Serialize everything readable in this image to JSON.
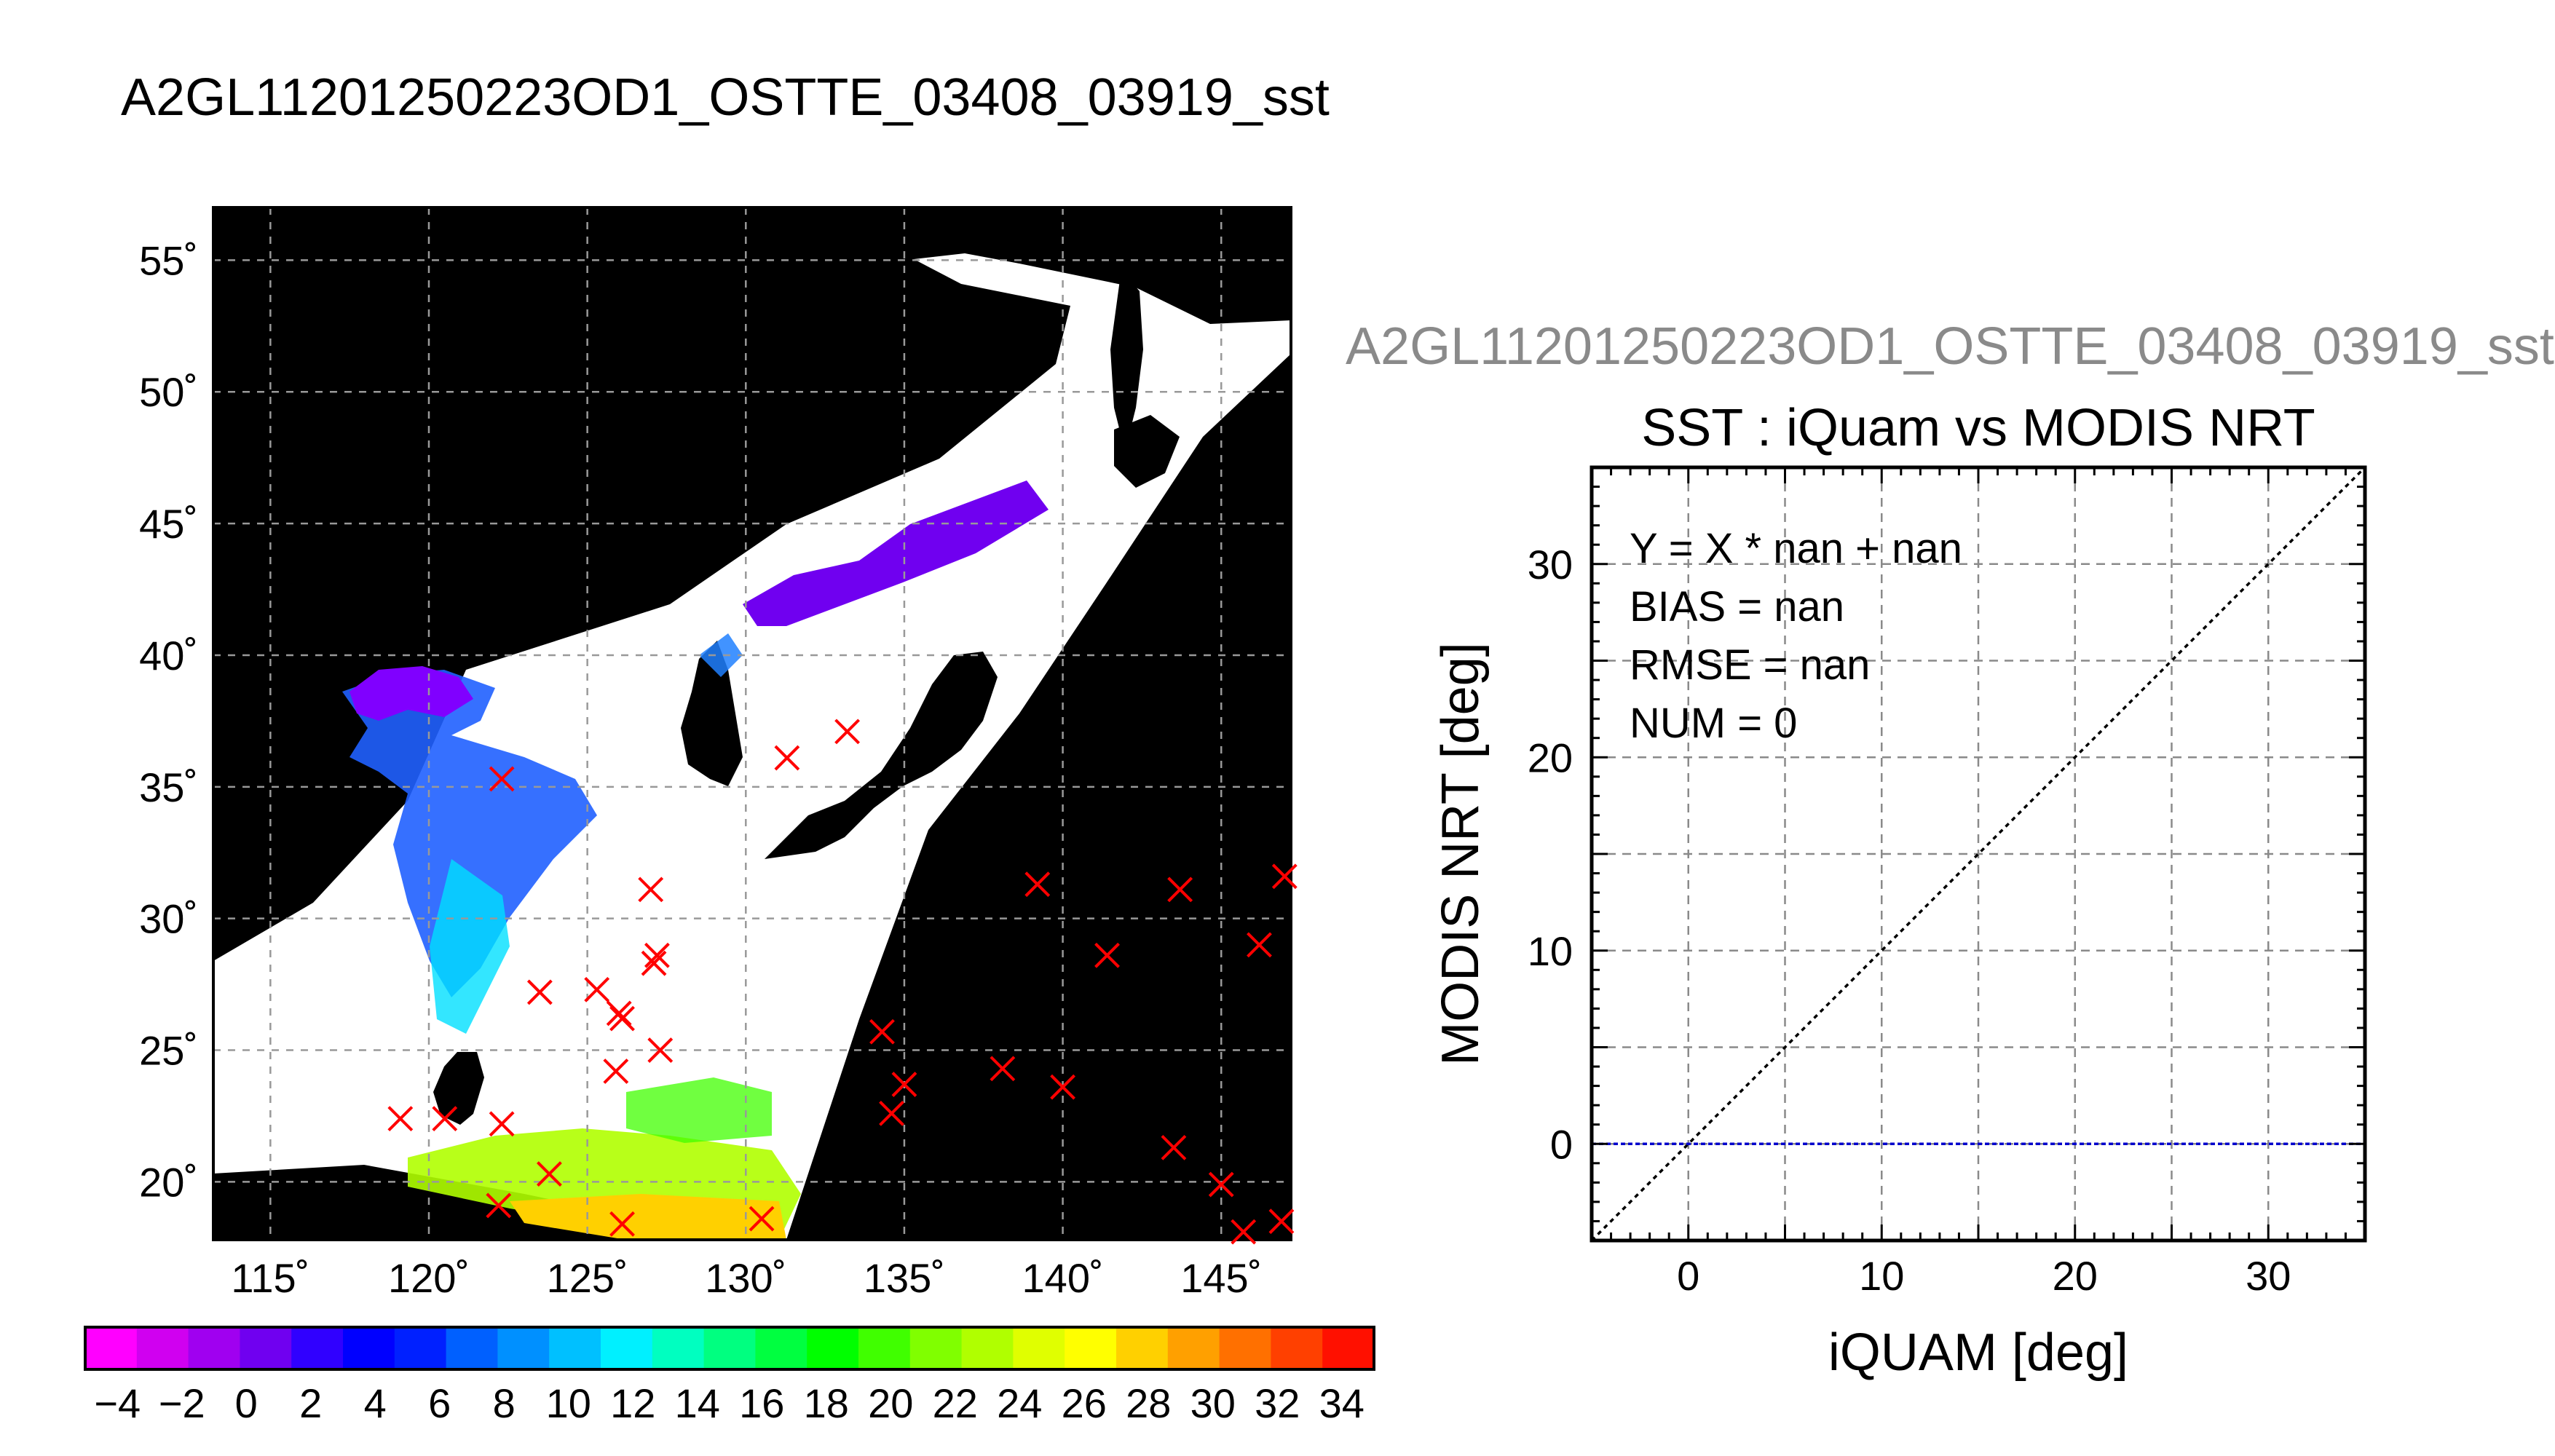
{
  "page": {
    "main_title": "A2GL11201250223OD1_OSTTE_03408_03919_sst",
    "sub_title": "A2GL11201250223OD1_OSTTE_03408_03919_sst"
  },
  "chart_data": [
    {
      "type": "map",
      "name": "sst-map",
      "xlim": [
        113.2,
        147.2
      ],
      "ylim": [
        17.8,
        57.0
      ],
      "x_ticks": [
        115,
        120,
        125,
        130,
        135,
        140,
        145
      ],
      "y_ticks": [
        20,
        25,
        30,
        35,
        40,
        45,
        50,
        55
      ],
      "x_tick_labels": [
        "115˚",
        "120˚",
        "125˚",
        "130˚",
        "135˚",
        "140˚",
        "145˚"
      ],
      "y_tick_labels": [
        "20˚",
        "25˚",
        "30˚",
        "35˚",
        "40˚",
        "45˚",
        "50˚",
        "55˚"
      ],
      "grid": true,
      "background_color": "#000000",
      "land_color": "#ffffff",
      "marker_color": "#ff0000",
      "markers": [
        [
          122.3,
          35.3
        ],
        [
          131.3,
          36.1
        ],
        [
          133.2,
          37.1
        ],
        [
          127.0,
          31.1
        ],
        [
          139.2,
          31.3
        ],
        [
          143.7,
          31.1
        ],
        [
          147.0,
          31.6
        ],
        [
          127.2,
          28.6
        ],
        [
          127.1,
          28.3
        ],
        [
          141.4,
          28.6
        ],
        [
          146.2,
          29.0
        ],
        [
          123.5,
          27.2
        ],
        [
          125.3,
          27.3
        ],
        [
          126.0,
          26.4
        ],
        [
          126.1,
          26.2
        ],
        [
          127.3,
          25.0
        ],
        [
          134.3,
          25.7
        ],
        [
          125.9,
          24.2
        ],
        [
          135.0,
          23.7
        ],
        [
          138.1,
          24.3
        ],
        [
          140.0,
          23.6
        ],
        [
          119.1,
          22.4
        ],
        [
          120.5,
          22.4
        ],
        [
          122.3,
          22.2
        ],
        [
          134.6,
          22.6
        ],
        [
          143.5,
          21.3
        ],
        [
          123.8,
          20.3
        ],
        [
          122.2,
          19.1
        ],
        [
          126.1,
          18.4
        ],
        [
          130.5,
          18.6
        ],
        [
          145.0,
          19.9
        ],
        [
          145.7,
          18.1
        ],
        [
          146.9,
          18.5
        ]
      ]
    },
    {
      "type": "scatter",
      "name": "sst-comparison",
      "title": "SST : iQuam vs MODIS NRT",
      "xlabel": "iQUAM [deg]",
      "ylabel": "MODIS NRT [deg]",
      "xlim": [
        -5,
        35
      ],
      "ylim": [
        -5,
        35
      ],
      "x_ticks": [
        0,
        10,
        20,
        30
      ],
      "y_ticks": [
        0,
        10,
        20,
        30
      ],
      "grid_step": 5,
      "grid": true,
      "points": [],
      "stats": [
        "Y = X * nan + nan",
        "BIAS = nan",
        "RMSE = nan",
        "NUM = 0"
      ],
      "lines": [
        {
          "kind": "one-to-one",
          "color": "#000000",
          "from": [
            -5,
            -5
          ],
          "to": [
            35,
            35
          ]
        },
        {
          "kind": "regression",
          "color": "#0000cc",
          "y": 0
        }
      ]
    },
    {
      "type": "colorbar",
      "name": "sst-colorbar",
      "range": [
        -5,
        35
      ],
      "tick_values": [
        -4,
        -2,
        0,
        2,
        4,
        6,
        8,
        10,
        12,
        14,
        16,
        18,
        20,
        22,
        24,
        26,
        28,
        30,
        32,
        34
      ],
      "tick_labels": [
        "−4",
        "−2",
        "0",
        "2",
        "4",
        "6",
        "8",
        "10",
        "12",
        "14",
        "16",
        "18",
        "20",
        "22",
        "24",
        "26",
        "28",
        "30",
        "32",
        "34"
      ],
      "colors": [
        "#ff00ff",
        "#d000f0",
        "#a000f0",
        "#7000f0",
        "#3000ff",
        "#0000ff",
        "#0020ff",
        "#0060ff",
        "#0090ff",
        "#00c0ff",
        "#00f0ff",
        "#00ffc0",
        "#00ff80",
        "#00ff40",
        "#00ff00",
        "#40ff00",
        "#80ff00",
        "#b0ff00",
        "#e0ff00",
        "#ffff00",
        "#ffd000",
        "#ffa000",
        "#ff7000",
        "#ff4000",
        "#ff1000"
      ]
    }
  ]
}
